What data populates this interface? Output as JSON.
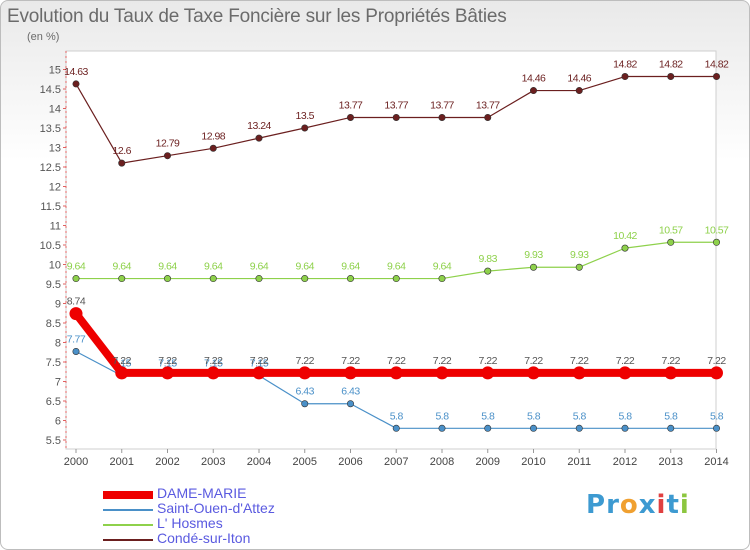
{
  "title": "Evolution du Taux de Taxe Foncière sur les Propriétés Bâties",
  "subtitle": "(en %)",
  "chart_data": {
    "type": "line",
    "title": "Evolution du Taux de Taxe Foncière sur les Propriétés Bâties",
    "ylabel": "(en %)",
    "xlabel": "",
    "ylim": [
      5.5,
      15
    ],
    "ytick_labels": [
      "5.5",
      "6",
      "6.5",
      "7",
      "7.5",
      "8",
      "8.5",
      "9",
      "9.5",
      "10",
      "10.5",
      "11",
      "11.5",
      "12",
      "12.5",
      "13",
      "13.5",
      "14",
      "14.5",
      "15"
    ],
    "x": [
      "2000",
      "2001",
      "2002",
      "2003",
      "2004",
      "2005",
      "2006",
      "2007",
      "2008",
      "2009",
      "2010",
      "2011",
      "2012",
      "2013",
      "2014"
    ],
    "series": [
      {
        "name": "Condé-sur-Iton",
        "color": "#6b1f1f",
        "values": [
          14.63,
          12.6,
          12.79,
          12.98,
          13.24,
          13.5,
          13.77,
          13.77,
          13.77,
          13.77,
          14.46,
          14.46,
          14.82,
          14.82,
          14.82
        ],
        "labels": [
          "14.63",
          "12.6",
          "12.79",
          "12.98",
          "13.24",
          "13.5",
          "13.77",
          "13.77",
          "13.77",
          "13.77",
          "14.46",
          "14.46",
          "14.82",
          "14.82",
          "14.82"
        ]
      },
      {
        "name": "L' Hosmes",
        "color": "#8ed14b",
        "values": [
          9.64,
          9.64,
          9.64,
          9.64,
          9.64,
          9.64,
          9.64,
          9.64,
          9.64,
          9.83,
          9.93,
          9.93,
          10.42,
          10.57,
          10.57
        ],
        "labels": [
          "9.64",
          "9.64",
          "9.64",
          "9.64",
          "9.64",
          "9.64",
          "9.64",
          "9.64",
          "9.64",
          "9.83",
          "9.93",
          "9.93",
          "10.42",
          "10.57",
          "10.57"
        ]
      },
      {
        "name": "Saint-Ouen-d'Attez",
        "color": "#4a90c8",
        "values": [
          7.77,
          7.15,
          7.15,
          7.15,
          7.15,
          6.43,
          6.43,
          5.8,
          5.8,
          5.8,
          5.8,
          5.8,
          5.8,
          5.8,
          5.8
        ],
        "labels": [
          "7.77",
          "7.15",
          "7.15",
          "7.15",
          "7.15",
          "6.43",
          "6.43",
          "5.8",
          "5.8",
          "5.8",
          "5.8",
          "5.8",
          "5.8",
          "5.8",
          "5.8"
        ]
      },
      {
        "name": "DAME-MARIE",
        "color": "#ee0000",
        "values": [
          8.74,
          7.22,
          7.22,
          7.22,
          7.22,
          7.22,
          7.22,
          7.22,
          7.22,
          7.22,
          7.22,
          7.22,
          7.22,
          7.22,
          7.22
        ],
        "labels": [
          "8.74",
          "7.22",
          "7.22",
          "7.22",
          "7.22",
          "7.22",
          "7.22",
          "7.22",
          "7.22",
          "7.22",
          "7.22",
          "7.22",
          "7.22",
          "7.22",
          "7.22"
        ]
      }
    ],
    "legend": {
      "placement": "bottom-left",
      "entries": [
        {
          "name": "DAME-MARIE",
          "color": "#ee0000",
          "label_color": "#5a5ae0"
        },
        {
          "name": "Saint-Ouen-d'Attez",
          "color": "#4a90c8",
          "label_color": "#5a5ae0"
        },
        {
          "name": "L' Hosmes",
          "color": "#8ed14b",
          "label_color": "#5a5ae0"
        },
        {
          "name": "Condé-sur-Iton",
          "color": "#6b1f1f",
          "label_color": "#5a5ae0"
        }
      ]
    }
  },
  "logo": {
    "letters": [
      "P",
      "r",
      "o",
      "x",
      "i",
      "t",
      "i"
    ],
    "colors": [
      "#3d9ad1",
      "#3d9ad1",
      "#f0a030",
      "#3d9ad1",
      "#e04040",
      "#3d9ad1",
      "#8cc63f"
    ]
  }
}
